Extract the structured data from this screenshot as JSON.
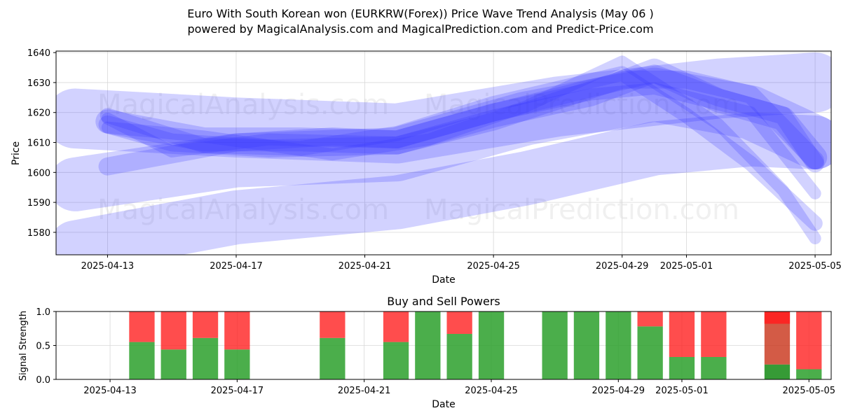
{
  "header": {
    "title_line1": "Euro With South Korean won (EURKRW(Forex)) Price Wave Trend Analysis (May 06 )",
    "title_line2": "powered by MagicalAnalysis.com and MagicalPrediction.com and Predict-Price.com"
  },
  "watermarks": [
    "MagicalAnalysis.com",
    "MagicalPrediction.com"
  ],
  "colors": {
    "wave": "#3333ff",
    "buy": "#2ca02c",
    "sell": "#ff2020",
    "buy_dark": "#138a13",
    "sell_dark": "#c83218"
  },
  "chart_data": [
    {
      "type": "line",
      "xlabel": "Date",
      "ylabel": "Price",
      "ylim": [
        1572.5,
        1640.5
      ],
      "yticks": [
        1580,
        1590,
        1600,
        1610,
        1620,
        1630,
        1640
      ],
      "xticks": [
        "2025-04-13",
        "2025-04-17",
        "2025-04-21",
        "2025-04-25",
        "2025-04-29",
        "2025-05-01",
        "2025-05-05"
      ],
      "x_range": [
        "2025-04-12",
        "2025-05-05"
      ],
      "grid": true,
      "series": [
        {
          "x": [
            "2025-04-12",
            "2025-04-17",
            "2025-04-22",
            "2025-04-27",
            "2025-05-02",
            "2025-05-05"
          ],
          "values": [
            1618,
            1615,
            1613,
            1622,
            1628,
            1630
          ],
          "band": 10
        },
        {
          "x": [
            "2025-04-12",
            "2025-04-17",
            "2025-04-22",
            "2025-04-26",
            "2025-04-30",
            "2025-05-03",
            "2025-05-05"
          ],
          "values": [
            1596,
            1604,
            1606,
            1618,
            1626,
            1620,
            1610
          ],
          "band": 9
        },
        {
          "x": [
            "2025-04-12",
            "2025-04-17",
            "2025-04-22",
            "2025-04-26",
            "2025-04-30",
            "2025-05-03",
            "2025-05-05"
          ],
          "values": [
            1575,
            1585,
            1590,
            1598,
            1608,
            1611,
            1610
          ],
          "band": 9
        },
        {
          "x": [
            "2025-04-13",
            "2025-04-16",
            "2025-04-19",
            "2025-04-22",
            "2025-04-25",
            "2025-04-28",
            "2025-04-30",
            "2025-05-02",
            "2025-05-04",
            "2025-05-05"
          ],
          "values": [
            1617,
            1611,
            1611,
            1610,
            1619,
            1626,
            1634,
            1624,
            1618,
            1605
          ],
          "band": 4
        },
        {
          "x": [
            "2025-04-13",
            "2025-04-17",
            "2025-04-20",
            "2025-04-22",
            "2025-04-25",
            "2025-04-28",
            "2025-04-30",
            "2025-05-02",
            "2025-05-04",
            "2025-05-05"
          ],
          "values": [
            1602,
            1610,
            1612,
            1611,
            1620,
            1628,
            1633,
            1625,
            1619,
            1603
          ],
          "band": 3
        },
        {
          "x": [
            "2025-04-13",
            "2025-04-15",
            "2025-04-18",
            "2025-04-22",
            "2025-04-25",
            "2025-04-29",
            "2025-05-01",
            "2025-05-03",
            "2025-05-05"
          ],
          "values": [
            1616,
            1610,
            1608,
            1609,
            1617,
            1631,
            1631,
            1626,
            1604
          ],
          "band": 3
        },
        {
          "x": [
            "2025-04-13",
            "2025-04-16",
            "2025-04-19",
            "2025-04-22",
            "2025-04-25",
            "2025-04-29",
            "2025-05-01",
            "2025-05-03",
            "2025-05-05"
          ],
          "values": [
            1619,
            1609,
            1608,
            1613,
            1623,
            1633,
            1619,
            1603,
            1583
          ],
          "band": 2.5
        },
        {
          "x": [
            "2025-04-13",
            "2025-04-16",
            "2025-04-20",
            "2025-04-23",
            "2025-04-26",
            "2025-04-29",
            "2025-05-02",
            "2025-05-04",
            "2025-05-05"
          ],
          "values": [
            1615,
            1612,
            1606,
            1611,
            1622,
            1637,
            1616,
            1594,
            1578
          ],
          "band": 2
        },
        {
          "x": [
            "2025-04-13",
            "2025-04-15",
            "2025-04-18",
            "2025-04-22",
            "2025-04-25",
            "2025-04-28",
            "2025-04-30",
            "2025-05-03",
            "2025-05-05"
          ],
          "values": [
            1618,
            1607,
            1611,
            1610,
            1619,
            1626,
            1628,
            1620,
            1593
          ],
          "band": 2
        }
      ]
    },
    {
      "type": "bar",
      "title": "Buy and Sell Powers",
      "xlabel": "Date",
      "ylabel": "Signal Strength",
      "ylim": [
        0,
        1
      ],
      "yticks": [
        "0.0",
        "0.5",
        "1.0"
      ],
      "xticks": [
        "2025-04-13",
        "2025-04-17",
        "2025-04-21",
        "2025-04-25",
        "2025-04-29",
        "2025-05-01",
        "2025-05-05"
      ],
      "x_range": [
        "2025-04-12",
        "2025-05-05"
      ],
      "dates": [
        "2025-04-14",
        "2025-04-15",
        "2025-04-16",
        "2025-04-17",
        "2025-04-20",
        "2025-04-22",
        "2025-04-23",
        "2025-04-24",
        "2025-04-25",
        "2025-04-27",
        "2025-04-28",
        "2025-04-29",
        "2025-04-30",
        "2025-05-01",
        "2025-05-02",
        "2025-05-04",
        "2025-05-05"
      ],
      "buy": [
        0.55,
        0.44,
        0.61,
        0.44,
        0.61,
        0.55,
        1.0,
        0.67,
        1.0,
        1.0,
        1.0,
        1.0,
        0.78,
        0.33,
        0.33,
        0.22,
        0.15
      ],
      "sell": [
        0.45,
        0.56,
        0.39,
        0.56,
        0.39,
        0.45,
        0.0,
        0.33,
        0.0,
        0.0,
        0.0,
        0.0,
        0.22,
        0.67,
        0.67,
        0.78,
        0.85
      ]
    }
  ]
}
